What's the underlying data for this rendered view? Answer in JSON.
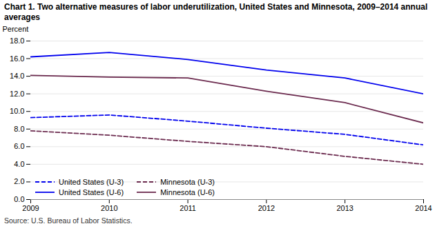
{
  "chart_data": {
    "type": "line",
    "title": "Chart 1. Two alternative measures of labor underutilization, United States and Minnesota, 2009–2014 annual averages",
    "y_label": "Percent",
    "source": "Source: U.S. Bureau of Labor Statistics.",
    "x": [
      2009,
      2010,
      2011,
      2012,
      2013,
      2014
    ],
    "series": [
      {
        "name": "United States (U-3)",
        "color": "#0000EE",
        "line_style": "dashed",
        "values": [
          9.3,
          9.6,
          8.9,
          8.1,
          7.4,
          6.2
        ]
      },
      {
        "name": "Minnesota (U-3)",
        "color": "#6B2A4E",
        "line_style": "dashed",
        "values": [
          7.8,
          7.3,
          6.6,
          6.0,
          4.9,
          4.0
        ]
      },
      {
        "name": "United States (U-6)",
        "color": "#0000EE",
        "line_style": "solid",
        "values": [
          16.2,
          16.7,
          15.9,
          14.7,
          13.8,
          12.0
        ]
      },
      {
        "name": "Minnesota (U-6)",
        "color": "#6B2A4E",
        "line_style": "solid",
        "values": [
          14.1,
          13.9,
          13.8,
          12.3,
          11.0,
          8.7
        ]
      }
    ],
    "xlim": [
      2009,
      2014
    ],
    "xticks": [
      2009,
      2010,
      2011,
      2012,
      2013,
      2014
    ],
    "ylim": [
      0,
      18
    ],
    "yticks": [
      {
        "value": 0,
        "label": "0.0"
      },
      {
        "value": 2,
        "label": "2.0"
      },
      {
        "value": 4,
        "label": "4.0"
      },
      {
        "value": 6,
        "label": "6.0"
      },
      {
        "value": 8,
        "label": "8.0"
      },
      {
        "value": 10,
        "label": "10.0"
      },
      {
        "value": 12,
        "label": "12.0"
      },
      {
        "value": 14,
        "label": "14.0"
      },
      {
        "value": 16,
        "label": "16.0"
      },
      {
        "value": 18,
        "label": "18.0"
      }
    ],
    "grid": true,
    "legend": "lower left"
  }
}
